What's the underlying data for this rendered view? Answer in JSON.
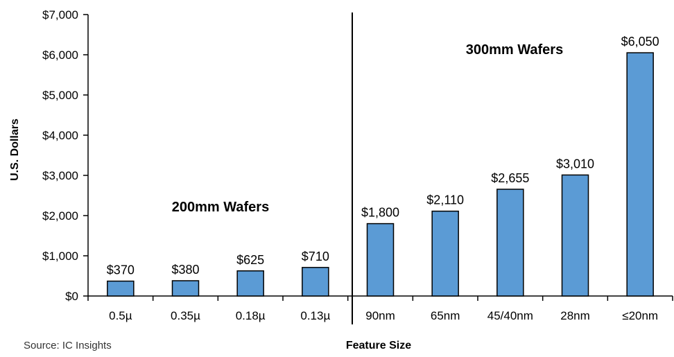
{
  "chart_data": {
    "type": "bar",
    "categories": [
      "0.5µ",
      "0.35µ",
      "0.18µ",
      "0.13µ",
      "90nm",
      "65nm",
      "45/40nm",
      "28nm",
      "≤20nm"
    ],
    "values": [
      370,
      380,
      625,
      710,
      1800,
      2110,
      2655,
      3010,
      6050
    ],
    "data_labels": [
      "$370",
      "$380",
      "$625",
      "$710",
      "$1,800",
      "$2,110",
      "$2,655",
      "$3,010",
      "$6,050"
    ],
    "ylabel": "U.S. Dollars",
    "xlabel": "Feature Size",
    "ylim": [
      0,
      7000
    ],
    "yticks": [
      0,
      1000,
      2000,
      3000,
      4000,
      5000,
      6000,
      7000
    ],
    "ytick_labels": [
      "$0",
      "$1,000",
      "$2,000",
      "$3,000",
      "$4,000",
      "$5,000",
      "$6,000",
      "$7,000"
    ],
    "grid": false,
    "legend": "none",
    "annotations": {
      "group_200mm": "200mm Wafers",
      "group_300mm": "300mm Wafers"
    },
    "bar_color": "#5b9bd5",
    "bar_outline": "#000000"
  },
  "source": "Source: IC Insights"
}
